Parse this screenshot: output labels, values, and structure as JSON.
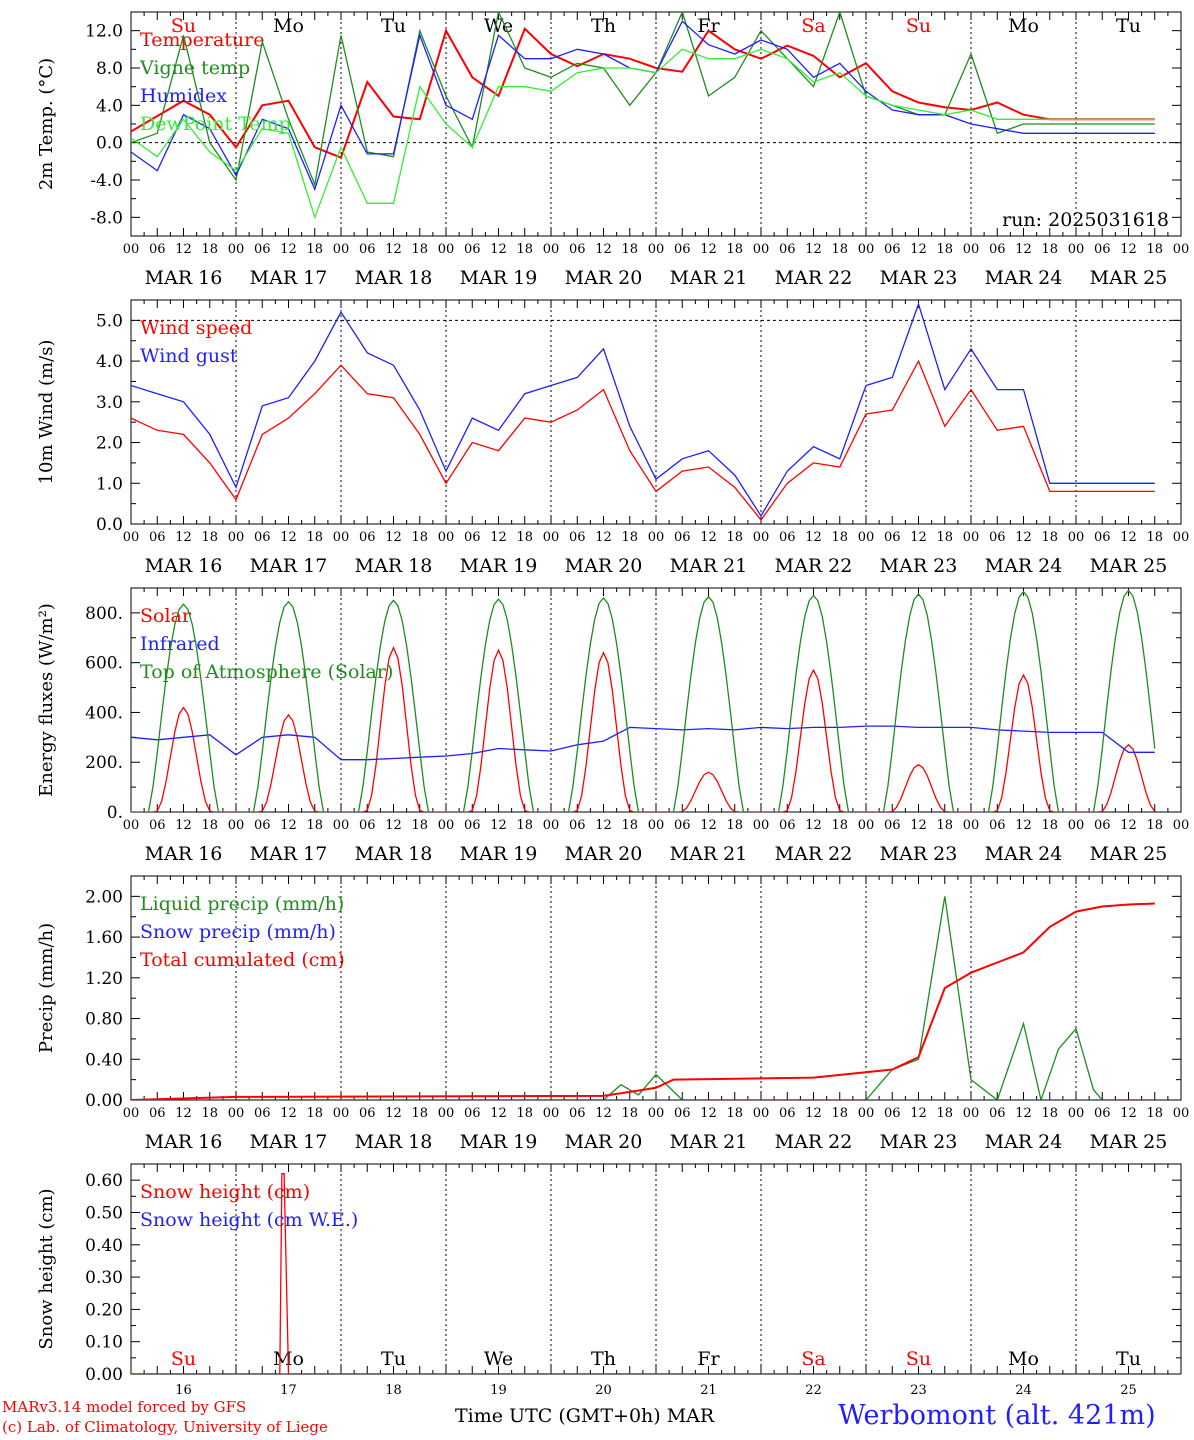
{
  "footer": {
    "credit_line1": "MARv3.14 model forced by GFS",
    "credit_line2": "(c) Lab. of Climatology, University of Liege",
    "xaxis_title": "Time UTC (GMT+0h) MAR",
    "station": "Werbomont (alt. 421m)"
  },
  "colors": {
    "red": "#ff0000",
    "green": "#1f8c1f",
    "blue": "#1f1fff",
    "lightgreen": "#33ee33",
    "weekend": "#ff0000",
    "weekday": "#000000"
  },
  "days": {
    "names": [
      "Su",
      "Mo",
      "Tu",
      "We",
      "Th",
      "Fr",
      "Sa",
      "Su",
      "Mo",
      "Tu"
    ],
    "weekend": [
      true,
      false,
      false,
      false,
      false,
      false,
      true,
      true,
      false,
      false
    ],
    "date_labels": [
      "MAR 16",
      "MAR 17",
      "MAR 18",
      "MAR 19",
      "MAR 20",
      "MAR 21",
      "MAR 22",
      "MAR 23",
      "MAR 24",
      "MAR 25"
    ],
    "numbers": [
      "16",
      "17",
      "18",
      "19",
      "20",
      "21",
      "22",
      "23",
      "24",
      "25"
    ],
    "hour_labels": [
      "00",
      "06",
      "12",
      "18"
    ],
    "end_hour": "00"
  },
  "chart_data": [
    {
      "type": "line",
      "ylabel": "2m Temp. (°C)",
      "ylim": [
        -10,
        14
      ],
      "yticks": [
        -8,
        -4,
        0,
        4,
        8,
        12
      ],
      "ytick_labels": [
        "-8.0",
        "-4.0",
        "0.0",
        "4.0",
        "8.0",
        "12.0"
      ],
      "reference_lines": [
        0
      ],
      "annotation": "run: 2025031618",
      "legend_placement": "top-left",
      "series": [
        {
          "name": "Temperature",
          "color": "#ff0000",
          "x": [
            0,
            12,
            18,
            24,
            30,
            36,
            42,
            48,
            54,
            60,
            66,
            72,
            78,
            84,
            90,
            96,
            102,
            108,
            114,
            120,
            126,
            132,
            138,
            144,
            150,
            156,
            162,
            168,
            174,
            180,
            186,
            192,
            198,
            204,
            210,
            216,
            222,
            228,
            234
          ],
          "y": [
            1.2,
            4.5,
            3.0,
            -0.5,
            4.0,
            4.5,
            -0.5,
            -1.6,
            6.5,
            2.8,
            2.5,
            12.0,
            7.0,
            5.0,
            12.2,
            9.5,
            8.2,
            9.5,
            9.0,
            8.0,
            7.6,
            12.0,
            10.0,
            9.0,
            10.4,
            9.3,
            7.0,
            8.5,
            5.5,
            4.3,
            3.8,
            3.5,
            4.3,
            3.0,
            2.5,
            2.5,
            2.5,
            2.5,
            2.5
          ]
        },
        {
          "name": "Vigne temp",
          "color": "#1f8c1f",
          "x": [
            0,
            6,
            12,
            18,
            24,
            30,
            36,
            42,
            48,
            54,
            60,
            66,
            72,
            78,
            84,
            90,
            96,
            102,
            108,
            114,
            120,
            126,
            132,
            138,
            144,
            150,
            156,
            162,
            168,
            174,
            180,
            186,
            192,
            198,
            204,
            210,
            216,
            222,
            228,
            234
          ],
          "y": [
            0.0,
            1.0,
            11.5,
            0.0,
            -4.0,
            10.8,
            2.5,
            -4.5,
            11.5,
            -1.0,
            -1.5,
            12.0,
            5.0,
            -0.5,
            14.0,
            8.0,
            7.0,
            8.5,
            8.0,
            4.0,
            7.5,
            14.0,
            5.0,
            7.0,
            12.0,
            9.0,
            6.0,
            14.0,
            5.0,
            4.0,
            3.0,
            3.0,
            9.5,
            1.0,
            2.0,
            2.0,
            2.0,
            2.0,
            2.0,
            2.0
          ]
        },
        {
          "name": "Humidex",
          "color": "#1f1fff",
          "x": [
            0,
            6,
            12,
            18,
            24,
            30,
            36,
            42,
            48,
            54,
            60,
            66,
            72,
            78,
            84,
            90,
            96,
            102,
            108,
            114,
            120,
            126,
            132,
            138,
            144,
            150,
            156,
            162,
            168,
            174,
            180,
            186,
            192,
            198,
            204,
            210,
            216,
            222,
            228,
            234
          ],
          "y": [
            -1.0,
            -3.0,
            3.0,
            1.5,
            -3.5,
            2.5,
            1.5,
            -5.0,
            4.0,
            -1.2,
            -1.2,
            11.5,
            4.0,
            2.5,
            11.5,
            9.0,
            9.0,
            10.0,
            9.5,
            8.0,
            7.5,
            13.0,
            10.5,
            9.5,
            11.0,
            10.0,
            7.0,
            8.5,
            5.5,
            3.5,
            3.0,
            3.0,
            2.0,
            1.5,
            1.0,
            1.0,
            1.0,
            1.0,
            1.0,
            1.0
          ]
        },
        {
          "name": "DewPoint Temp",
          "color": "#33ee33",
          "x": [
            0,
            6,
            12,
            18,
            24,
            30,
            36,
            42,
            48,
            54,
            60,
            66,
            72,
            78,
            84,
            90,
            96,
            102,
            108,
            114,
            120,
            126,
            132,
            138,
            144,
            150,
            156,
            162,
            168,
            174,
            180,
            186,
            192,
            198,
            204,
            210,
            216,
            222,
            228,
            234
          ],
          "y": [
            0.5,
            -1.5,
            2.5,
            -1.0,
            -3.0,
            1.5,
            1.0,
            -8.0,
            -0.5,
            -6.5,
            -6.5,
            6.0,
            2.0,
            -0.5,
            6.0,
            6.0,
            5.5,
            7.5,
            8.0,
            8.0,
            7.5,
            10.0,
            9.0,
            9.0,
            10.0,
            9.0,
            6.5,
            7.5,
            5.0,
            4.0,
            3.5,
            3.0,
            3.5,
            2.5,
            2.5,
            2.5,
            2.5,
            2.5,
            2.5,
            2.5
          ]
        }
      ]
    },
    {
      "type": "line",
      "ylabel": "10m Wind (m/s)",
      "ylim": [
        0,
        5.5
      ],
      "yticks": [
        0,
        1,
        2,
        3,
        4,
        5
      ],
      "ytick_labels": [
        "0.0",
        "1.0",
        "2.0",
        "3.0",
        "4.0",
        "5.0"
      ],
      "reference_lines": [
        5
      ],
      "legend_placement": "top-left",
      "series": [
        {
          "name": "Wind speed",
          "color": "#ff0000",
          "x": [
            0,
            6,
            12,
            18,
            24,
            30,
            36,
            42,
            48,
            54,
            60,
            66,
            72,
            78,
            84,
            90,
            96,
            102,
            108,
            114,
            120,
            126,
            132,
            138,
            144,
            150,
            156,
            162,
            168,
            174,
            180,
            186,
            192,
            198,
            204,
            210,
            216,
            222,
            228,
            234
          ],
          "y": [
            2.6,
            2.3,
            2.2,
            1.5,
            0.6,
            2.2,
            2.6,
            3.2,
            3.9,
            3.2,
            3.1,
            2.2,
            1.0,
            2.0,
            1.8,
            2.6,
            2.5,
            2.8,
            3.3,
            1.8,
            0.8,
            1.3,
            1.4,
            0.9,
            0.1,
            1.0,
            1.5,
            1.4,
            2.7,
            2.8,
            4.0,
            2.4,
            3.3,
            2.3,
            2.4,
            0.8,
            0.8,
            0.8,
            0.8,
            0.8
          ]
        },
        {
          "name": "Wind gust",
          "color": "#1f1fff",
          "x": [
            0,
            6,
            12,
            18,
            24,
            30,
            36,
            42,
            48,
            54,
            60,
            66,
            72,
            78,
            84,
            90,
            96,
            102,
            108,
            114,
            120,
            126,
            132,
            138,
            144,
            150,
            156,
            162,
            168,
            174,
            180,
            186,
            192,
            198,
            204,
            210,
            216,
            222,
            228,
            234
          ],
          "y": [
            3.4,
            3.2,
            3.0,
            2.2,
            0.9,
            2.9,
            3.1,
            4.0,
            5.2,
            4.2,
            3.9,
            2.8,
            1.3,
            2.6,
            2.3,
            3.2,
            3.4,
            3.6,
            4.3,
            2.4,
            1.1,
            1.6,
            1.8,
            1.2,
            0.2,
            1.3,
            1.9,
            1.6,
            3.4,
            3.6,
            5.4,
            3.3,
            4.3,
            3.3,
            3.3,
            1.0,
            1.0,
            1.0,
            1.0,
            1.0
          ]
        }
      ]
    },
    {
      "type": "line",
      "ylabel": "Energy fluxes (W/m²)",
      "ylim": [
        0,
        900
      ],
      "yticks": [
        0,
        200,
        400,
        600,
        800
      ],
      "ytick_labels": [
        "0.",
        "200.",
        "400.",
        "600.",
        "800."
      ],
      "legend_placement": "top-left",
      "series": [
        {
          "name": "Solar",
          "color": "#ff0000",
          "peak_x": [
            12,
            36,
            60,
            84,
            108,
            132,
            156,
            180,
            204,
            228
          ],
          "peak_y": [
            420,
            390,
            660,
            650,
            640,
            160,
            570,
            190,
            550,
            270
          ]
        },
        {
          "name": "Infrared",
          "color": "#1f1fff",
          "x": [
            0,
            6,
            12,
            18,
            24,
            30,
            36,
            42,
            48,
            54,
            60,
            66,
            72,
            78,
            84,
            90,
            96,
            102,
            108,
            114,
            120,
            126,
            132,
            138,
            144,
            150,
            156,
            162,
            168,
            174,
            180,
            186,
            192,
            198,
            204,
            210,
            216,
            222,
            228,
            234
          ],
          "y": [
            300,
            290,
            300,
            310,
            230,
            300,
            310,
            300,
            210,
            210,
            215,
            220,
            225,
            235,
            255,
            250,
            245,
            270,
            285,
            340,
            335,
            330,
            335,
            330,
            340,
            335,
            340,
            340,
            345,
            345,
            340,
            340,
            340,
            330,
            325,
            320,
            320,
            320,
            240,
            240
          ]
        },
        {
          "name": "Top of Atmosphere (Solar)",
          "color": "#1f8c1f",
          "peak_x": [
            12,
            36,
            60,
            84,
            108,
            132,
            156,
            180,
            204,
            228
          ],
          "peak_y": [
            835,
            845,
            850,
            855,
            860,
            865,
            870,
            875,
            885,
            890
          ]
        }
      ]
    },
    {
      "type": "line",
      "ylabel": "Precip (mm/h)",
      "ylim": [
        0,
        2.2
      ],
      "yticks": [
        0,
        0.4,
        0.8,
        1.2,
        1.6,
        2.0
      ],
      "ytick_labels": [
        "0.00",
        "0.40",
        "0.80",
        "1.20",
        "1.60",
        "2.00"
      ],
      "legend_placement": "top-left",
      "series": [
        {
          "name": "Liquid precip (mm/h)",
          "color": "#1f8c1f",
          "x": [
            0,
            108,
            112,
            116,
            120,
            126,
            130,
            168,
            174,
            180,
            186,
            192,
            198,
            204,
            208,
            212,
            216,
            220,
            222,
            226,
            230,
            234
          ],
          "y": [
            0,
            0,
            0.15,
            0.05,
            0.25,
            0.0,
            0.0,
            0.0,
            0.3,
            0.4,
            2.0,
            0.2,
            0.0,
            0.75,
            0.0,
            0.5,
            0.7,
            0.1,
            0.0,
            0.0,
            0.0,
            0.0
          ]
        },
        {
          "name": "Snow precip (mm/h)",
          "color": "#1f1fff",
          "x": [
            0,
            234
          ],
          "y": [
            0,
            0
          ]
        },
        {
          "name": "Total cumulated (cm)",
          "color": "#ff0000",
          "x": [
            0,
            24,
            108,
            114,
            120,
            124,
            156,
            174,
            180,
            186,
            192,
            198,
            204,
            210,
            216,
            222,
            228,
            234
          ],
          "y": [
            0,
            0.03,
            0.04,
            0.08,
            0.12,
            0.2,
            0.22,
            0.3,
            0.42,
            1.1,
            1.25,
            1.35,
            1.45,
            1.7,
            1.85,
            1.9,
            1.92,
            1.93
          ]
        }
      ]
    },
    {
      "type": "line",
      "ylabel": "Snow height (cm)",
      "ylim": [
        0,
        0.65
      ],
      "yticks": [
        0,
        0.1,
        0.2,
        0.3,
        0.4,
        0.5,
        0.6
      ],
      "ytick_labels": [
        "0.00",
        "0.10",
        "0.20",
        "0.30",
        "0.40",
        "0.50",
        "0.60"
      ],
      "legend_placement": "top-left",
      "series": [
        {
          "name": "Snow height (cm)",
          "color": "#ff0000",
          "x": [
            0,
            34,
            34.5,
            35,
            36,
            234
          ],
          "y": [
            0,
            0,
            0.62,
            0.62,
            0,
            0
          ]
        },
        {
          "name": "Snow height (cm W.E.)",
          "color": "#1f1fff",
          "x": [
            0,
            234
          ],
          "y": [
            0,
            0
          ]
        }
      ]
    }
  ]
}
